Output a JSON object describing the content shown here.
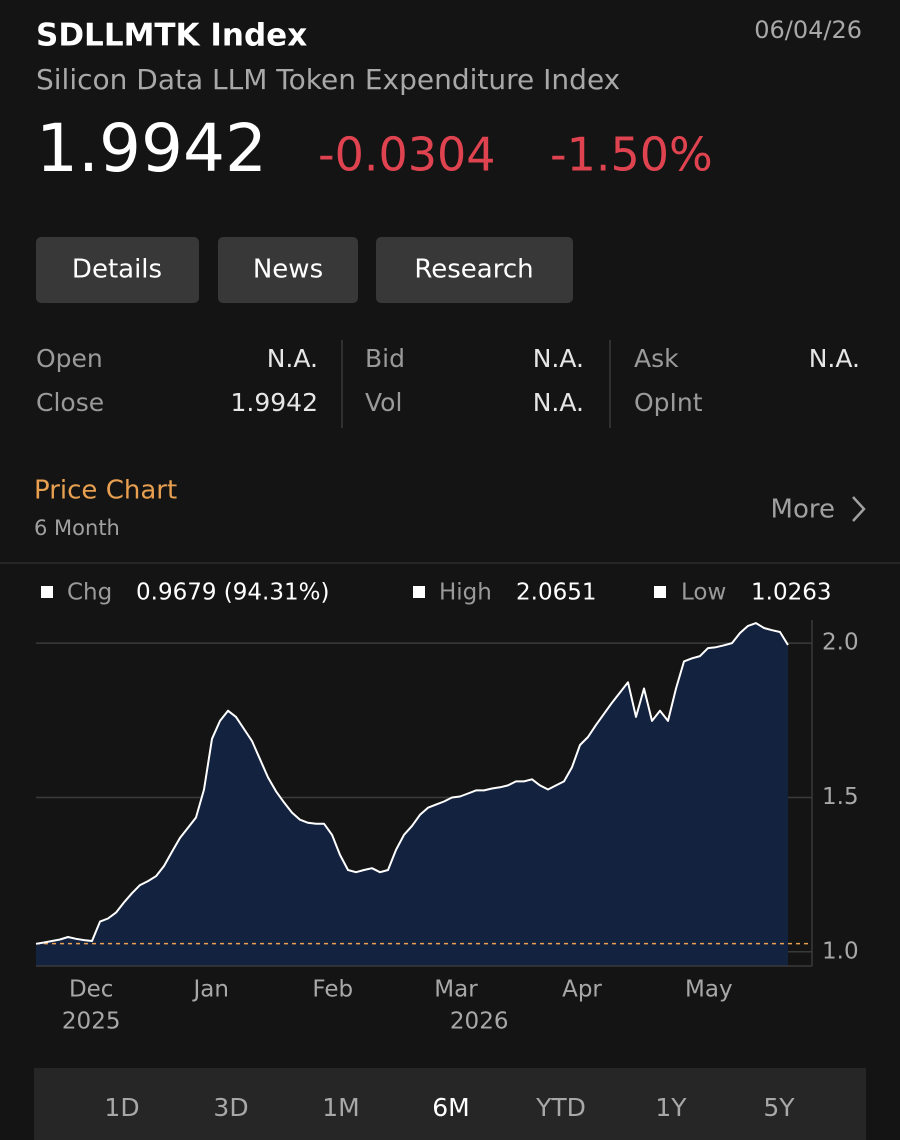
{
  "header": {
    "symbol": "SDLLMTK Index",
    "date": "06/04/26",
    "name": "Silicon Data LLM Token Expenditure Index",
    "price": "1.9942",
    "change": "-0.0304",
    "change_pct": "-1.50%"
  },
  "tabs": [
    "Details",
    "News",
    "Research"
  ],
  "stats": [
    [
      {
        "label": "Open",
        "value": "N.A."
      },
      {
        "label": "Close",
        "value": "1.9942"
      }
    ],
    [
      {
        "label": "Bid",
        "value": "N.A."
      },
      {
        "label": "Vol",
        "value": "N.A."
      }
    ],
    [
      {
        "label": "Ask",
        "value": "N.A."
      },
      {
        "label": "OpInt"
      }
    ]
  ],
  "section": {
    "title": "Price Chart",
    "subtitle": "6 Month",
    "more": "More"
  },
  "chart_data": {
    "type": "area",
    "legend": {
      "chg_label": "Chg",
      "chg": "0.9679 (94.31%)",
      "high_label": "High",
      "high": 2.0651,
      "low_label": "Low",
      "low": 1.0263
    },
    "values": [
      1.026,
      1.03,
      1.035,
      1.04,
      1.048,
      1.042,
      1.038,
      1.035,
      1.098,
      1.108,
      1.127,
      1.16,
      1.19,
      1.216,
      1.229,
      1.245,
      1.278,
      1.324,
      1.369,
      1.402,
      1.435,
      1.526,
      1.69,
      1.748,
      1.781,
      1.761,
      1.722,
      1.683,
      1.624,
      1.565,
      1.52,
      1.484,
      1.451,
      1.428,
      1.418,
      1.415,
      1.415,
      1.379,
      1.314,
      1.265,
      1.258,
      1.265,
      1.271,
      1.258,
      1.265,
      1.33,
      1.379,
      1.408,
      1.444,
      1.467,
      1.477,
      1.487,
      1.5,
      1.503,
      1.513,
      1.523,
      1.523,
      1.529,
      1.533,
      1.539,
      1.552,
      1.552,
      1.559,
      1.539,
      1.526,
      1.539,
      1.552,
      1.598,
      1.67,
      1.696,
      1.735,
      1.771,
      1.807,
      1.84,
      1.873,
      1.761,
      1.853,
      1.748,
      1.781,
      1.748,
      1.853,
      1.941,
      1.951,
      1.958,
      1.984,
      1.987,
      1.993,
      2.0,
      2.033,
      2.056,
      2.065,
      2.049,
      2.042,
      2.036,
      1.994
    ],
    "line_color": "#ffffff",
    "fill": "#13223f",
    "reference_color": "#e8a050",
    "grid": true,
    "xlim": [
      0,
      94
    ],
    "xticks": [
      {
        "value": 6.9,
        "label": "Dec"
      },
      {
        "value": 21.9,
        "label": "Jan"
      },
      {
        "value": 37.1,
        "label": "Feb"
      },
      {
        "value": 52.5,
        "label": "Mar"
      },
      {
        "value": 68.25,
        "label": "Apr"
      },
      {
        "value": 84.1,
        "label": "May"
      }
    ],
    "year_ticks": [
      {
        "value": 6.9,
        "label": "2025"
      },
      {
        "value": 55.4,
        "label": "2026"
      }
    ],
    "ylim": [
      0.954,
      2.075
    ],
    "yticks": [
      {
        "value": 1,
        "label": "1.0"
      },
      1.5,
      {
        "value": 2,
        "label": "2.0"
      }
    ]
  },
  "ranges": [
    "1D",
    "3D",
    "1M",
    "6M",
    "YTD",
    "1Y",
    "5Y"
  ],
  "selected_range": 3
}
